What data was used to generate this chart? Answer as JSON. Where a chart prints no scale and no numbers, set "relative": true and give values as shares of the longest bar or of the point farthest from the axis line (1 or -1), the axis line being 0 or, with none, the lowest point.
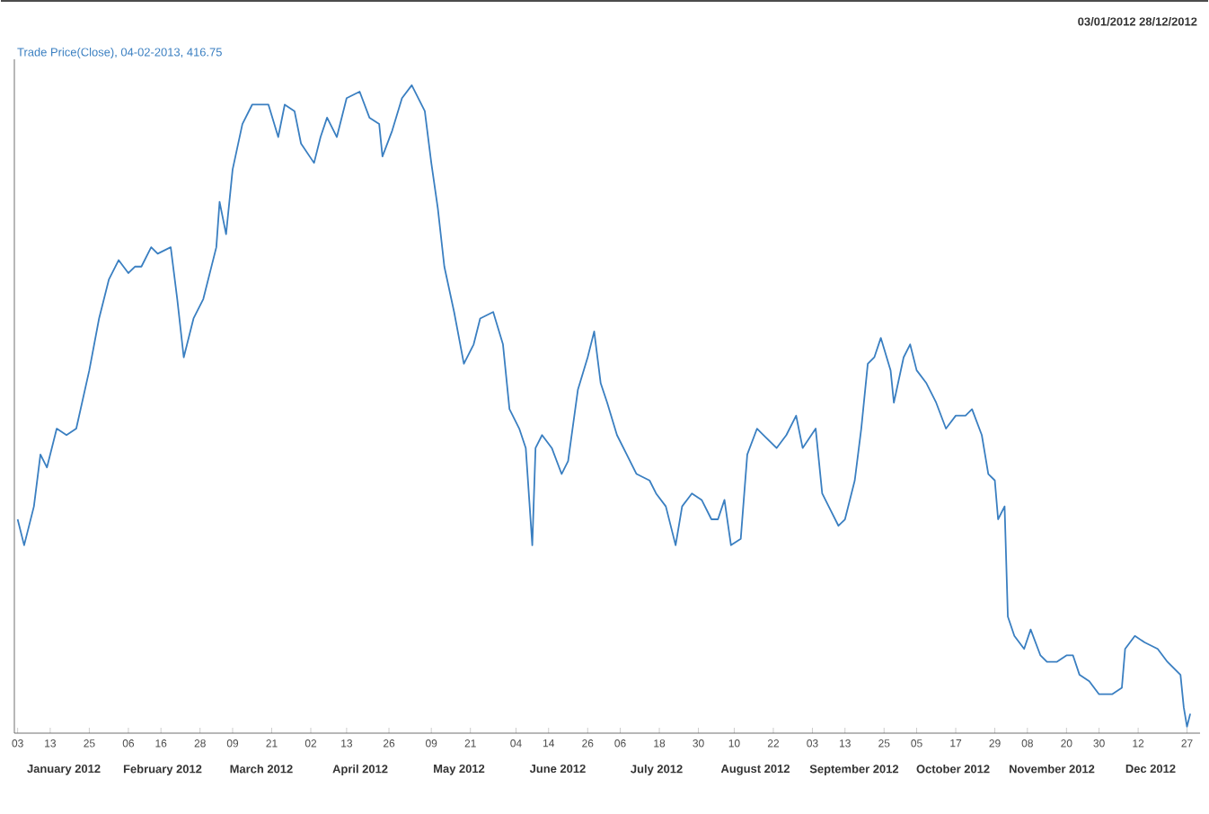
{
  "chart_data": {
    "type": "line",
    "title": "Trade Price(Close), 04-02-2013, 416.75",
    "subtitle": "03/01/2012  28/12/2012",
    "relative": true,
    "xlim": [
      "2012-01-02",
      "2012-12-31"
    ],
    "xticks": [
      {
        "value": "2012-01-03",
        "label": "03"
      },
      {
        "value": "2012-01-13",
        "label": "13"
      },
      {
        "value": "2012-01-25",
        "label": "25"
      },
      {
        "value": "2012-02-06",
        "label": "06"
      },
      {
        "value": "2012-02-16",
        "label": "16"
      },
      {
        "value": "2012-02-28",
        "label": "28"
      },
      {
        "value": "2012-03-09",
        "label": "09"
      },
      {
        "value": "2012-03-21",
        "label": "21"
      },
      {
        "value": "2012-04-02",
        "label": "02"
      },
      {
        "value": "2012-04-13",
        "label": "13"
      },
      {
        "value": "2012-04-26",
        "label": "26"
      },
      {
        "value": "2012-05-09",
        "label": "09"
      },
      {
        "value": "2012-05-21",
        "label": "21"
      },
      {
        "value": "2012-06-04",
        "label": "04"
      },
      {
        "value": "2012-06-14",
        "label": "14"
      },
      {
        "value": "2012-06-26",
        "label": "26"
      },
      {
        "value": "2012-07-06",
        "label": "06"
      },
      {
        "value": "2012-07-18",
        "label": "18"
      },
      {
        "value": "2012-07-30",
        "label": "30"
      },
      {
        "value": "2012-08-10",
        "label": "10"
      },
      {
        "value": "2012-08-22",
        "label": "22"
      },
      {
        "value": "2012-09-03",
        "label": "03"
      },
      {
        "value": "2012-09-13",
        "label": "13"
      },
      {
        "value": "2012-09-25",
        "label": "25"
      },
      {
        "value": "2012-10-05",
        "label": "05"
      },
      {
        "value": "2012-10-17",
        "label": "17"
      },
      {
        "value": "2012-10-29",
        "label": "29"
      },
      {
        "value": "2012-11-08",
        "label": "08"
      },
      {
        "value": "2012-11-20",
        "label": "20"
      },
      {
        "value": "2012-11-30",
        "label": "30"
      },
      {
        "value": "2012-12-12",
        "label": "12"
      },
      {
        "value": "2012-12-27",
        "label": "27"
      }
    ],
    "annotations": [
      "January 2012",
      "February 2012",
      "March 2012",
      "April 2012",
      "May 2012",
      "June 2012",
      "July 2012",
      "August 2012",
      "September 2012",
      "October 2012",
      "November 2012",
      "Dec 2012"
    ],
    "x": [
      "2012-01-03",
      "2012-01-05",
      "2012-01-08",
      "2012-01-10",
      "2012-01-12",
      "2012-01-15",
      "2012-01-18",
      "2012-01-21",
      "2012-01-25",
      "2012-01-28",
      "2012-01-31",
      "2012-02-03",
      "2012-02-06",
      "2012-02-08",
      "2012-02-10",
      "2012-02-13",
      "2012-02-15",
      "2012-02-19",
      "2012-02-21",
      "2012-02-23",
      "2012-02-26",
      "2012-02-29",
      "2012-03-04",
      "2012-03-05",
      "2012-03-07",
      "2012-03-09",
      "2012-03-12",
      "2012-03-15",
      "2012-03-20",
      "2012-03-23",
      "2012-03-25",
      "2012-03-28",
      "2012-03-30",
      "2012-04-03",
      "2012-04-05",
      "2012-04-07",
      "2012-04-10",
      "2012-04-13",
      "2012-04-17",
      "2012-04-20",
      "2012-04-23",
      "2012-04-24",
      "2012-04-27",
      "2012-04-30",
      "2012-05-03",
      "2012-05-07",
      "2012-05-09",
      "2012-05-11",
      "2012-05-13",
      "2012-05-16",
      "2012-05-19",
      "2012-05-22",
      "2012-05-24",
      "2012-05-28",
      "2012-05-31",
      "2012-06-02",
      "2012-06-05",
      "2012-06-07",
      "2012-06-09",
      "2012-06-10",
      "2012-06-12",
      "2012-06-15",
      "2012-06-18",
      "2012-06-20",
      "2012-06-23",
      "2012-06-26",
      "2012-06-28",
      "2012-06-30",
      "2012-07-02",
      "2012-07-05",
      "2012-07-08",
      "2012-07-11",
      "2012-07-15",
      "2012-07-17",
      "2012-07-20",
      "2012-07-23",
      "2012-07-25",
      "2012-07-28",
      "2012-07-31",
      "2012-08-03",
      "2012-08-05",
      "2012-08-07",
      "2012-08-09",
      "2012-08-12",
      "2012-08-14",
      "2012-08-17",
      "2012-08-19",
      "2012-08-23",
      "2012-08-26",
      "2012-08-29",
      "2012-08-31",
      "2012-09-04",
      "2012-09-06",
      "2012-09-08",
      "2012-09-11",
      "2012-09-13",
      "2012-09-16",
      "2012-09-18",
      "2012-09-20",
      "2012-09-22",
      "2012-09-24",
      "2012-09-27",
      "2012-09-28",
      "2012-10-01",
      "2012-10-03",
      "2012-10-05",
      "2012-10-08",
      "2012-10-11",
      "2012-10-14",
      "2012-10-17",
      "2012-10-20",
      "2012-10-22",
      "2012-10-25",
      "2012-10-27",
      "2012-10-29",
      "2012-10-30",
      "2012-11-01",
      "2012-11-02",
      "2012-11-04",
      "2012-11-07",
      "2012-11-09",
      "2012-11-12",
      "2012-11-14",
      "2012-11-17",
      "2012-11-20",
      "2012-11-22",
      "2012-11-24",
      "2012-11-27",
      "2012-11-30",
      "2012-12-03",
      "2012-12-04",
      "2012-12-07",
      "2012-12-08",
      "2012-12-11",
      "2012-12-14",
      "2012-12-18",
      "2012-12-21",
      "2012-12-25",
      "2012-12-26",
      "2012-12-27",
      "2012-12-28"
    ],
    "series": [
      {
        "color": "#3a7fc1",
        "values": [
          0.33,
          0.29,
          0.35,
          0.43,
          0.41,
          0.47,
          0.46,
          0.47,
          0.56,
          0.64,
          0.7,
          0.73,
          0.71,
          0.72,
          0.72,
          0.75,
          0.74,
          0.75,
          0.67,
          0.58,
          0.64,
          0.67,
          0.75,
          0.82,
          0.77,
          0.87,
          0.94,
          0.97,
          0.97,
          0.92,
          0.97,
          0.96,
          0.91,
          0.88,
          0.92,
          0.95,
          0.92,
          0.98,
          0.99,
          0.95,
          0.94,
          0.89,
          0.93,
          0.98,
          1.0,
          0.96,
          0.88,
          0.81,
          0.72,
          0.65,
          0.57,
          0.6,
          0.64,
          0.65,
          0.6,
          0.5,
          0.47,
          0.44,
          0.29,
          0.44,
          0.46,
          0.44,
          0.4,
          0.42,
          0.53,
          0.58,
          0.62,
          0.54,
          0.51,
          0.46,
          0.43,
          0.4,
          0.39,
          0.37,
          0.35,
          0.29,
          0.35,
          0.37,
          0.36,
          0.33,
          0.33,
          0.36,
          0.29,
          0.3,
          0.43,
          0.47,
          0.46,
          0.44,
          0.46,
          0.49,
          0.44,
          0.47,
          0.37,
          0.35,
          0.32,
          0.33,
          0.39,
          0.47,
          0.57,
          0.58,
          0.61,
          0.56,
          0.51,
          0.58,
          0.6,
          0.56,
          0.54,
          0.51,
          0.47,
          0.49,
          0.49,
          0.5,
          0.46,
          0.4,
          0.39,
          0.33,
          0.35,
          0.18,
          0.15,
          0.13,
          0.16,
          0.12,
          0.11,
          0.11,
          0.12,
          0.12,
          0.09,
          0.08,
          0.06,
          0.06,
          0.06,
          0.07,
          0.13,
          0.15,
          0.14,
          0.13,
          0.11,
          0.09,
          0.04,
          0.01,
          0.03
        ]
      }
    ]
  }
}
